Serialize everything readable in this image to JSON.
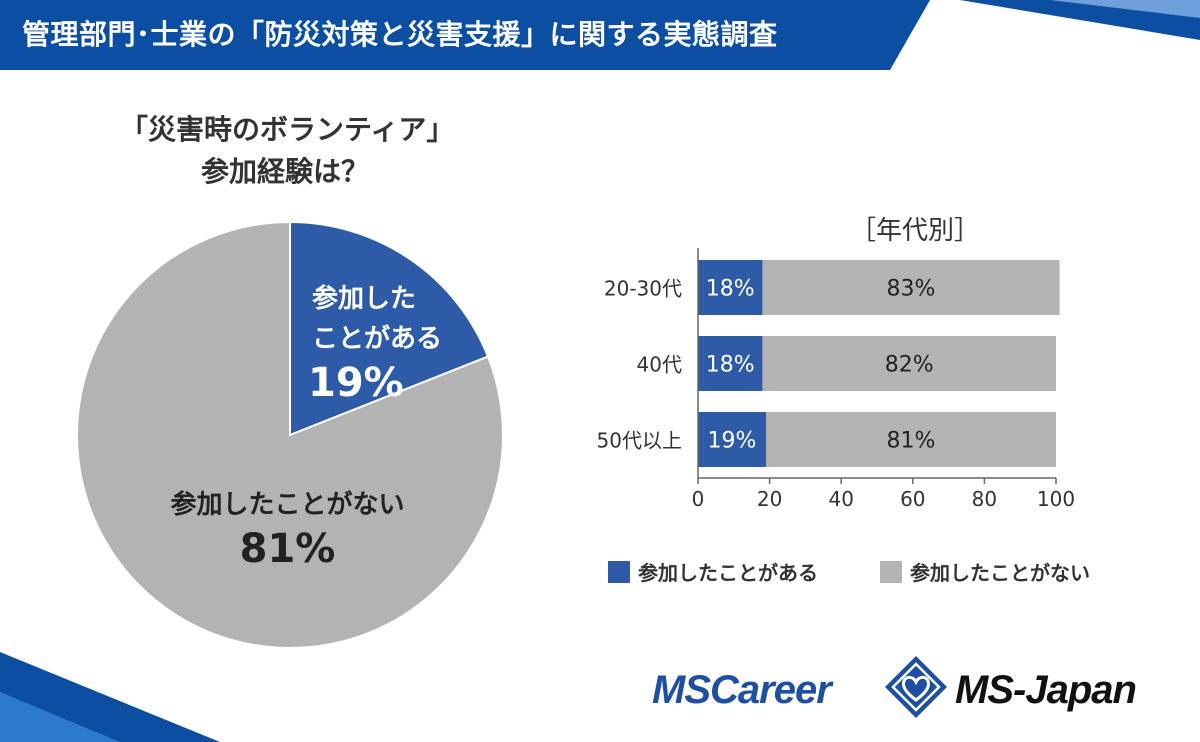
{
  "header": {
    "title": "管理部門･士業の「防災対策と災害支援」に関する実態調査"
  },
  "colors": {
    "brand_blue": "#0b4ea2",
    "series_yes": "#2e5ba8",
    "series_no": "#b3b3b3"
  },
  "pie": {
    "question_line1": "「災害時のボランティア」",
    "question_line2": "参加経験は？",
    "yes_label_line1": "参加した",
    "yes_label_line2": "ことがある",
    "yes_pct": "19%",
    "no_label": "参加したことがない",
    "no_pct": "81%"
  },
  "bar": {
    "title": "［年代別］"
  },
  "legend": {
    "yes": "参加したことがある",
    "no": "参加したことがない"
  },
  "logos": {
    "left": "MSCareer",
    "right": "MS-Japan"
  },
  "chart_data": [
    {
      "type": "pie",
      "slices": [
        {
          "label": "参加したことがある",
          "value": 19
        },
        {
          "label": "参加したことがない",
          "value": 81
        }
      ]
    },
    {
      "type": "bar",
      "orientation": "horizontal",
      "stacked": true,
      "categories": [
        "20-30代",
        "40代",
        "50代以上"
      ],
      "series": [
        {
          "name": "参加したことがある",
          "values": [
            18,
            18,
            19
          ],
          "labels": [
            "18%",
            "18%",
            "19%"
          ]
        },
        {
          "name": "参加したことがない",
          "values": [
            83,
            82,
            81
          ],
          "labels": [
            "83%",
            "82%",
            "81%"
          ]
        }
      ],
      "xticks": [
        "0",
        "20",
        "40",
        "60",
        "80",
        "100"
      ],
      "xlim": [
        0,
        100
      ],
      "legend_position": "bottom"
    }
  ]
}
